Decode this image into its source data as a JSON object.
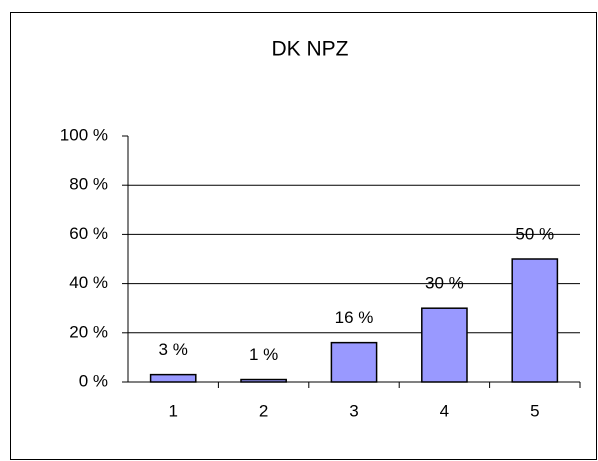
{
  "chart_data": {
    "type": "bar",
    "title": "DK NPZ",
    "categories": [
      "1",
      "2",
      "3",
      "4",
      "5"
    ],
    "values": [
      3,
      1,
      16,
      30,
      50
    ],
    "value_labels": [
      "3 %",
      "1 %",
      "16 %",
      "30 %",
      "50 %"
    ],
    "color": "#9999ff",
    "ylim": [
      0,
      100
    ],
    "yticks": [
      {
        "value": 0,
        "label": "0 %"
      },
      {
        "value": 20,
        "label": "20 %"
      },
      {
        "value": 40,
        "label": "40 %"
      },
      {
        "value": 60,
        "label": "60 %"
      },
      {
        "value": 80,
        "label": "80 %"
      },
      {
        "value": 100,
        "label": "100 %"
      }
    ],
    "grid": true
  }
}
